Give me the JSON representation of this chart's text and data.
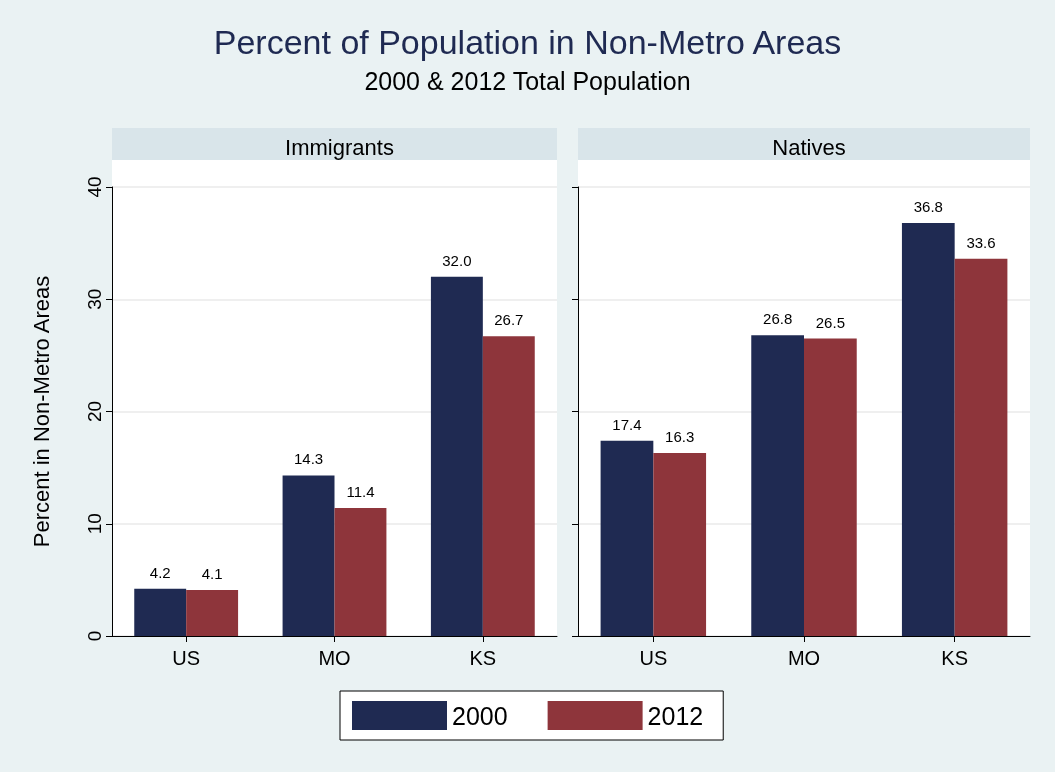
{
  "chart_data": [
    {
      "type": "other",
      "title": "Percent of Population in Non-Metro Areas",
      "subtitle": "2000 & 2012 Total Population"
    },
    {
      "type": "bar",
      "title": "Immigrants",
      "categories": [
        "US",
        "MO",
        "KS"
      ],
      "ylabel": "Percent in Non-Metro Areas",
      "ylim": [
        0,
        40
      ],
      "yticks": [
        0,
        10,
        20,
        30,
        40
      ],
      "grid": "y",
      "legend": "bottom",
      "data_labels": true,
      "series": [
        {
          "name": "2000",
          "color": "#1f2a52",
          "values": [
            4.2,
            14.3,
            32.0
          ],
          "value_labels": [
            "4.2",
            "14.3",
            "32.0"
          ]
        },
        {
          "name": "2012",
          "color": "#8e353b",
          "values": [
            4.1,
            11.4,
            26.7
          ],
          "value_labels": [
            "4.1",
            "11.4",
            "26.7"
          ]
        }
      ]
    },
    {
      "type": "bar",
      "title": "Natives",
      "categories": [
        "US",
        "MO",
        "KS"
      ],
      "ylim": [
        0,
        40
      ],
      "yticks": [
        0,
        10,
        20,
        30,
        40
      ],
      "grid": "y",
      "tick_labels": "x",
      "data_labels": true,
      "series": [
        {
          "name": "2000",
          "color": "#1f2a52",
          "values": [
            17.4,
            26.8,
            36.8
          ],
          "value_labels": [
            "17.4",
            "26.8",
            "36.8"
          ]
        },
        {
          "name": "2012",
          "color": "#8e353b",
          "values": [
            16.3,
            26.5,
            33.6
          ],
          "value_labels": [
            "16.3",
            "26.5",
            "33.6"
          ]
        }
      ]
    }
  ]
}
